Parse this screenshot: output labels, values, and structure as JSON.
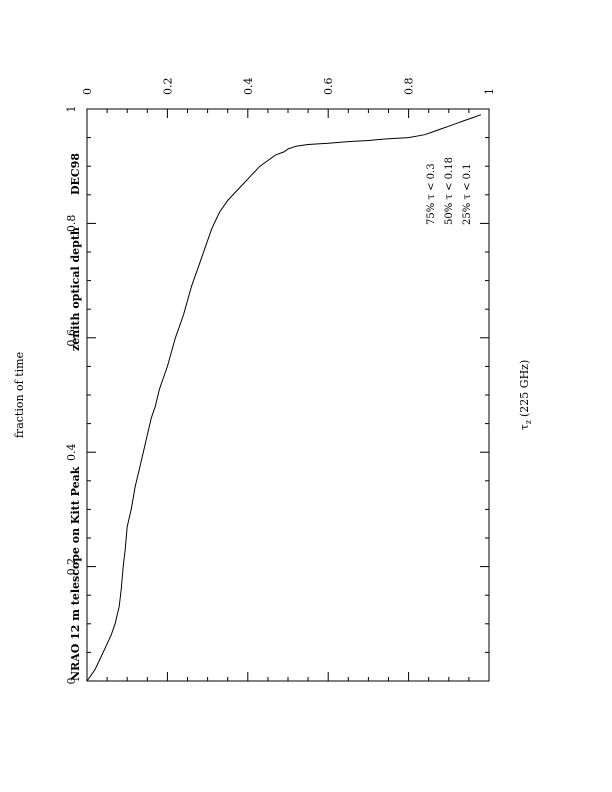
{
  "chart_data": {
    "type": "line",
    "title": "NRAO 12 m telescope on Kitt Peak",
    "subtitle": "zenith optical depth",
    "period_label": "DEC98",
    "xlabel": "τ (225 GHz)",
    "xlabel_symbol": "τ",
    "xlabel_subscript": "z",
    "xlabel_rest": "(225 GHz)",
    "ylabel": "fraction of time",
    "xlim": [
      0,
      1
    ],
    "ylim": [
      0,
      1
    ],
    "x_ticks": [
      "0",
      "0.2",
      "0.4",
      "0.6",
      "0.8",
      "1"
    ],
    "y_ticks": [
      "0",
      "0.2",
      "0.4",
      "0.6",
      "0.8",
      "1"
    ],
    "x_tick_values": [
      0,
      0.2,
      0.4,
      0.6,
      0.8,
      1
    ],
    "y_tick_values": [
      0,
      0.2,
      0.4,
      0.6,
      0.8,
      1
    ],
    "grid": false,
    "annotations": [
      "75% τ < 0.3",
      "50% τ < 0.18",
      "25% τ < 0.1"
    ],
    "series": [
      {
        "x": [
          0,
          0.01,
          0.02,
          0.03,
          0.04,
          0.05,
          0.06,
          0.07,
          0.08,
          0.085,
          0.09,
          0.095,
          0.1,
          0.11,
          0.12,
          0.13,
          0.14,
          0.15,
          0.16,
          0.17,
          0.18,
          0.2,
          0.22,
          0.24,
          0.26,
          0.28,
          0.3,
          0.31,
          0.32,
          0.33,
          0.34,
          0.35,
          0.37,
          0.39,
          0.41,
          0.43,
          0.45,
          0.47,
          0.49,
          0.5,
          0.52,
          0.55,
          0.6,
          0.65,
          0.7,
          0.75,
          0.8,
          0.84,
          0.86,
          0.88,
          0.9,
          0.92,
          0.94,
          0.96,
          0.98
        ],
        "y": [
          0,
          0.01,
          0.02,
          0.035,
          0.05,
          0.065,
          0.08,
          0.1,
          0.13,
          0.16,
          0.2,
          0.23,
          0.27,
          0.3,
          0.34,
          0.37,
          0.4,
          0.43,
          0.46,
          0.48,
          0.51,
          0.55,
          0.6,
          0.64,
          0.69,
          0.73,
          0.77,
          0.79,
          0.805,
          0.82,
          0.83,
          0.84,
          0.855,
          0.87,
          0.885,
          0.9,
          0.91,
          0.92,
          0.925,
          0.93,
          0.935,
          0.938,
          0.94,
          0.943,
          0.945,
          0.948,
          0.95,
          0.955,
          0.96,
          0.965,
          0.97,
          0.975,
          0.98,
          0.985,
          0.99
        ]
      }
    ]
  }
}
